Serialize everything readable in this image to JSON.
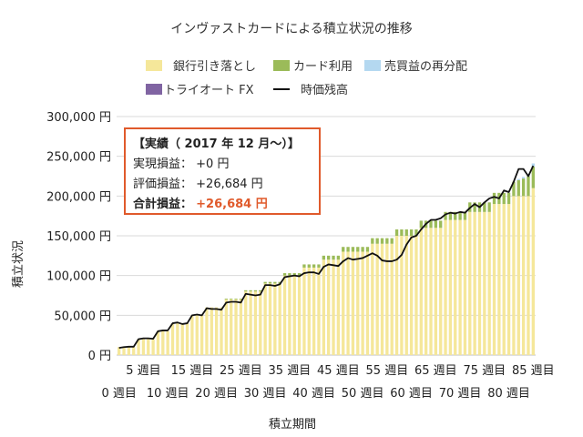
{
  "chart_data": {
    "type": "bar",
    "title": "インヴァストカードによる積立状況の推移",
    "xlabel": "積立期間",
    "ylabel": "積立状況",
    "ylim": [
      0,
      300000
    ],
    "yticks": [
      "0 円",
      "50,000 円",
      "100,000 円",
      "150,000 円",
      "200,000 円",
      "250,000 円",
      "300,000 円"
    ],
    "xticks_top": [
      "5 週目",
      "15 週目",
      "25 週目",
      "35 週目",
      "45 週目",
      "55 週目",
      "65 週目",
      "75 週目",
      "85 週目"
    ],
    "xticks_bottom": [
      "0 週目",
      "10 週目",
      "20 週目",
      "30 週目",
      "40 週目",
      "50 週目",
      "60 週目",
      "70 週目",
      "80 週目"
    ],
    "grid": true,
    "legend_position": "top",
    "n_weeks": 86,
    "series": [
      {
        "name": "銀行引き落とし",
        "color": "#f5e79a",
        "kind": "bar"
      },
      {
        "name": "カード利用",
        "color": "#9bbb59",
        "kind": "bar"
      },
      {
        "name": "売買益の再分配",
        "color": "#b4d8f0",
        "kind": "bar"
      },
      {
        "name": "トライオート FX",
        "color": "#8064a2",
        "kind": "bar"
      },
      {
        "name": "時価残高",
        "color": "#111111",
        "kind": "line"
      }
    ],
    "bank_values": [
      10000,
      10000,
      10000,
      10000,
      20000,
      20000,
      20000,
      20000,
      30000,
      30000,
      30000,
      40000,
      40000,
      40000,
      40000,
      50000,
      50000,
      50000,
      60000,
      60000,
      60000,
      60000,
      70000,
      70000,
      70000,
      70000,
      80000,
      80000,
      80000,
      80000,
      90000,
      90000,
      90000,
      90000,
      100000,
      100000,
      100000,
      100000,
      110000,
      110000,
      110000,
      110000,
      120000,
      120000,
      120000,
      120000,
      130000,
      130000,
      130000,
      130000,
      130000,
      130000,
      140000,
      140000,
      140000,
      140000,
      140000,
      150000,
      150000,
      150000,
      150000,
      150000,
      160000,
      160000,
      160000,
      160000,
      160000,
      170000,
      170000,
      170000,
      170000,
      170000,
      180000,
      180000,
      180000,
      180000,
      180000,
      190000,
      190000,
      190000,
      190000,
      200000,
      200000,
      200000,
      200000,
      210000
    ],
    "card_values": [
      0,
      0,
      0,
      0,
      0,
      0,
      0,
      0,
      0,
      0,
      0,
      0,
      0,
      0,
      0,
      0,
      0,
      0,
      0,
      0,
      0,
      0,
      1000,
      1000,
      1000,
      1000,
      1500,
      1500,
      1500,
      1500,
      2000,
      2000,
      2000,
      2000,
      3000,
      3000,
      3000,
      3000,
      4000,
      4000,
      4000,
      4000,
      5000,
      5000,
      5000,
      5000,
      6000,
      6000,
      6000,
      6000,
      6000,
      6000,
      7000,
      7000,
      7000,
      7000,
      7000,
      8000,
      8000,
      8000,
      8000,
      8000,
      9000,
      9000,
      9000,
      9000,
      9000,
      10000,
      10000,
      10000,
      10000,
      10000,
      12000,
      12000,
      12000,
      12000,
      12000,
      14000,
      14000,
      14000,
      14000,
      18000,
      20000,
      22000,
      25000,
      27000
    ],
    "redist_values": [
      0,
      0,
      0,
      0,
      0,
      0,
      0,
      0,
      0,
      0,
      0,
      0,
      0,
      0,
      0,
      0,
      0,
      0,
      0,
      0,
      0,
      0,
      0,
      0,
      0,
      0,
      0,
      0,
      0,
      0,
      0,
      0,
      0,
      0,
      0,
      0,
      0,
      0,
      0,
      0,
      0,
      0,
      0,
      0,
      0,
      0,
      0,
      0,
      0,
      0,
      0,
      0,
      0,
      0,
      0,
      0,
      0,
      0,
      0,
      0,
      0,
      0,
      0,
      0,
      0,
      0,
      0,
      0,
      0,
      0,
      0,
      0,
      0,
      0,
      0,
      0,
      0,
      0,
      0,
      0,
      0,
      0,
      1500,
      2000,
      2500,
      4000
    ],
    "line_values": [
      9000,
      10000,
      10500,
      10500,
      20000,
      21000,
      21000,
      20500,
      30000,
      31000,
      31000,
      40000,
      41000,
      39000,
      40000,
      50000,
      51000,
      50000,
      59000,
      58000,
      58000,
      57000,
      66000,
      67000,
      67000,
      66000,
      77000,
      76000,
      75000,
      76000,
      88000,
      88000,
      87000,
      89000,
      98000,
      99000,
      100000,
      99000,
      103000,
      104000,
      104000,
      102000,
      111000,
      114000,
      113000,
      112000,
      118000,
      122000,
      120000,
      121000,
      122000,
      125000,
      128000,
      125000,
      119000,
      118000,
      118000,
      120000,
      126000,
      139000,
      148000,
      150000,
      158000,
      165000,
      170000,
      170000,
      172000,
      177000,
      179000,
      178000,
      180000,
      179000,
      185000,
      190000,
      186000,
      192000,
      197000,
      199000,
      197000,
      207000,
      205000,
      218000,
      234000,
      234000,
      225000,
      238000
    ]
  },
  "summary": {
    "heading": "【実績（ 2017 年 12 月～）】",
    "realized_label": "実現損益：",
    "realized_value": "+0 円",
    "unrealized_label": "評価損益：",
    "unrealized_value": "+26,684 円",
    "total_label": "合計損益：",
    "total_value": "+26,684 円"
  }
}
